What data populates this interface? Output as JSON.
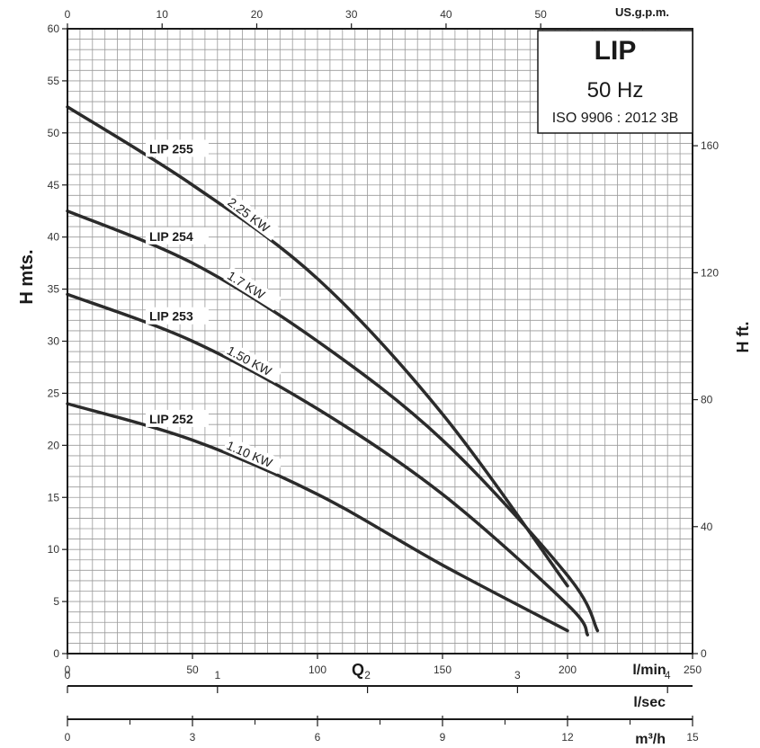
{
  "chart_data": {
    "type": "line",
    "title": "LIP",
    "subtitle": "50 Hz",
    "standard": "ISO 9906 : 2012 3B",
    "xlabel": "l/min",
    "x_symbol": "Q",
    "ylabel": "H mts.",
    "y2label": "H ft.",
    "x_top_label": "US.g.p.m.",
    "lsec_label": "l/sec",
    "m3h_label": "m³/h",
    "xlim": [
      0,
      250
    ],
    "ylim": [
      0,
      60
    ],
    "grid": true,
    "x_ticks": [
      "0",
      "50",
      "100",
      "150",
      "200",
      "250"
    ],
    "y_ticks": [
      "0",
      "5",
      "10",
      "15",
      "20",
      "25",
      "30",
      "35",
      "40",
      "45",
      "50",
      "55",
      "60"
    ],
    "top_ticks": [
      "0",
      "10",
      "20",
      "30",
      "40",
      "50"
    ],
    "right_ticks": [
      "0",
      "40",
      "80",
      "120",
      "160"
    ],
    "lsec_ticks": [
      "0",
      "1",
      "2",
      "3",
      "4"
    ],
    "m3h_ticks": [
      "0",
      "3",
      "6",
      "9",
      "12",
      "15"
    ],
    "series": [
      {
        "name": "LIP 255",
        "power": "2.25 KW",
        "x": [
          0,
          50,
          100,
          150,
          200
        ],
        "y": [
          52.5,
          45,
          36,
          23,
          6.5
        ]
      },
      {
        "name": "LIP 254",
        "power": "1.7 KW",
        "x": [
          0,
          50,
          100,
          150,
          200,
          212
        ],
        "y": [
          42.5,
          37.5,
          30,
          20.5,
          7.5,
          2.2
        ]
      },
      {
        "name": "LIP 253",
        "power": "1.50 KW",
        "x": [
          0,
          50,
          100,
          150,
          200,
          208
        ],
        "y": [
          34.5,
          30,
          23.5,
          15.3,
          4.7,
          1.8
        ]
      },
      {
        "name": "LIP 252",
        "power": "1.10 KW",
        "x": [
          0,
          50,
          100,
          150,
          200
        ],
        "y": [
          24,
          20.5,
          15.3,
          8.5,
          2.2
        ]
      }
    ]
  }
}
